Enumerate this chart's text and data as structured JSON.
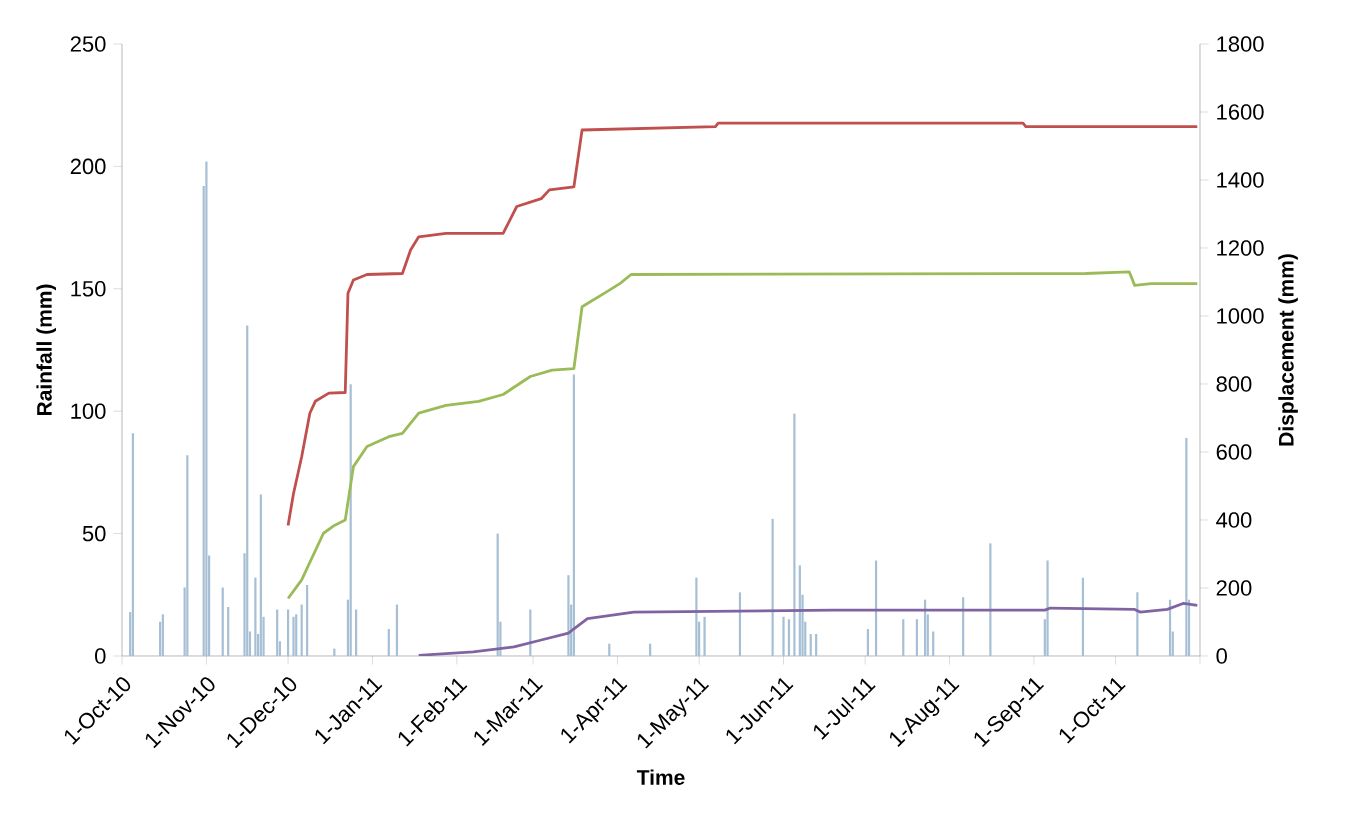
{
  "chart_data": {
    "type": "bar",
    "xlabel": "Time",
    "ylabel": "Rainfall (mm)",
    "y2label": "Displacement (mm)",
    "xlim": [
      "2010-10-01",
      "2011-11-01"
    ],
    "xticks": [
      {
        "value": "2010-10-01",
        "label": "1-Oct-10"
      },
      {
        "value": "2010-11-01",
        "label": "1-Nov-10"
      },
      {
        "value": "2010-12-01",
        "label": "1-Dec-10"
      },
      {
        "value": "2011-01-01",
        "label": "1-Jan-11"
      },
      {
        "value": "2011-02-01",
        "label": "1-Feb-11"
      },
      {
        "value": "2011-03-01",
        "label": "1-Mar-11"
      },
      {
        "value": "2011-04-01",
        "label": "1-Apr-11"
      },
      {
        "value": "2011-05-01",
        "label": "1-May-11"
      },
      {
        "value": "2011-06-01",
        "label": "1-Jun-11"
      },
      {
        "value": "2011-07-01",
        "label": "1-Jul-11"
      },
      {
        "value": "2011-08-01",
        "label": "1-Aug-11"
      },
      {
        "value": "2011-09-01",
        "label": "1-Sep-11"
      },
      {
        "value": "2011-10-01",
        "label": "1-Oct-11"
      },
      {
        "value": "2011-11-01",
        "label": null
      }
    ],
    "ylim": [
      0,
      250
    ],
    "yticks": [
      0,
      50,
      100,
      150,
      200,
      250
    ],
    "y2lim": [
      0,
      1800
    ],
    "y2ticks": [
      0,
      200,
      400,
      600,
      800,
      1000,
      1200,
      1400,
      1600,
      1800
    ],
    "grid": false,
    "series": [
      {
        "color": "#a6bfd4",
        "x": [
          "2010-10-04",
          "2010-10-05",
          "2010-10-15",
          "2010-10-16",
          "2010-10-24",
          "2010-10-25",
          "2010-10-31",
          "2010-11-01",
          "2010-11-02",
          "2010-11-07",
          "2010-11-09",
          "2010-11-15",
          "2010-11-16",
          "2010-11-17",
          "2010-11-19",
          "2010-11-20",
          "2010-11-21",
          "2010-11-22",
          "2010-11-27",
          "2010-11-28",
          "2010-12-01",
          "2010-12-03",
          "2010-12-04",
          "2010-12-06",
          "2010-12-08",
          "2010-12-18",
          "2010-12-23",
          "2010-12-24",
          "2010-12-26",
          "2011-01-07",
          "2011-01-10",
          "2011-02-16",
          "2011-02-17",
          "2011-02-28",
          "2011-03-14",
          "2011-03-15",
          "2011-03-16",
          "2011-03-29",
          "2011-04-13",
          "2011-04-30",
          "2011-05-01",
          "2011-05-03",
          "2011-05-16",
          "2011-05-28",
          "2011-06-01",
          "2011-06-03",
          "2011-06-05",
          "2011-06-07",
          "2011-06-08",
          "2011-06-09",
          "2011-06-11",
          "2011-06-13",
          "2011-07-02",
          "2011-07-05",
          "2011-07-15",
          "2011-07-20",
          "2011-07-23",
          "2011-07-24",
          "2011-07-26",
          "2011-08-06",
          "2011-08-16",
          "2011-09-05",
          "2011-09-06",
          "2011-09-19",
          "2011-10-09",
          "2011-10-21",
          "2011-10-22",
          "2011-10-27",
          "2011-10-28"
        ],
        "values": [
          18,
          91,
          14,
          17,
          28,
          82,
          192,
          202,
          41,
          28,
          20,
          42,
          135,
          10,
          32,
          9,
          66,
          16,
          19,
          6,
          19,
          16,
          17,
          21,
          29,
          3,
          23,
          111,
          19,
          11,
          21,
          50,
          14,
          19,
          33,
          21,
          115,
          5,
          5,
          32,
          14,
          16,
          26,
          56,
          16,
          15,
          99,
          37,
          25,
          14,
          9,
          9,
          11,
          39,
          15,
          15,
          23,
          17,
          10,
          24,
          46,
          15,
          39,
          32,
          26,
          23,
          10,
          89,
          23
        ]
      },
      {
        "type": "line",
        "axis": "y2",
        "color": "#c0504d",
        "x": [
          "2010-12-01",
          "2010-12-03",
          "2010-12-06",
          "2010-12-09",
          "2010-12-11",
          "2010-12-16",
          "2010-12-22",
          "2010-12-23",
          "2010-12-25",
          "2010-12-30",
          "2011-01-12",
          "2011-01-15",
          "2011-01-18",
          "2011-01-28",
          "2011-02-18",
          "2011-02-23",
          "2011-03-04",
          "2011-03-07",
          "2011-03-16",
          "2011-03-19",
          "2011-05-07",
          "2011-05-08",
          "2011-08-28",
          "2011-08-29",
          "2011-10-31"
        ],
        "values": [
          384,
          478,
          586,
          714,
          749,
          773,
          775,
          1067,
          1106,
          1122,
          1125,
          1194,
          1233,
          1243,
          1243,
          1322,
          1345,
          1371,
          1380,
          1547,
          1557,
          1567,
          1567,
          1557,
          1557
        ]
      },
      {
        "type": "line",
        "axis": "y2",
        "color": "#9bbb59",
        "x": [
          "2010-12-01",
          "2010-12-06",
          "2010-12-14",
          "2010-12-18",
          "2010-12-22",
          "2010-12-25",
          "2010-12-30",
          "2011-01-07",
          "2011-01-12",
          "2011-01-18",
          "2011-01-28",
          "2011-02-09",
          "2011-02-18",
          "2011-02-28",
          "2011-03-08",
          "2011-03-16",
          "2011-03-19",
          "2011-03-28",
          "2011-04-02",
          "2011-04-06",
          "2011-09-20",
          "2011-10-06",
          "2011-10-08",
          "2011-10-14",
          "2011-10-31"
        ],
        "values": [
          169,
          224,
          361,
          384,
          400,
          557,
          616,
          645,
          655,
          714,
          737,
          749,
          769,
          822,
          841,
          845,
          1027,
          1071,
          1096,
          1122,
          1125,
          1130,
          1090,
          1095,
          1095
        ]
      },
      {
        "type": "line",
        "axis": "y2",
        "color": "#8064a2",
        "x": [
          "2011-01-18",
          "2011-02-07",
          "2011-02-22",
          "2011-03-04",
          "2011-03-14",
          "2011-03-16",
          "2011-03-21",
          "2011-04-07",
          "2011-06-19",
          "2011-09-05",
          "2011-09-07",
          "2011-10-08",
          "2011-10-10",
          "2011-10-20",
          "2011-10-26",
          "2011-10-31"
        ],
        "values": [
          2,
          12,
          27,
          47,
          67,
          80,
          110,
          129,
          135,
          135,
          141,
          137,
          129,
          137,
          155,
          149
        ]
      }
    ]
  }
}
